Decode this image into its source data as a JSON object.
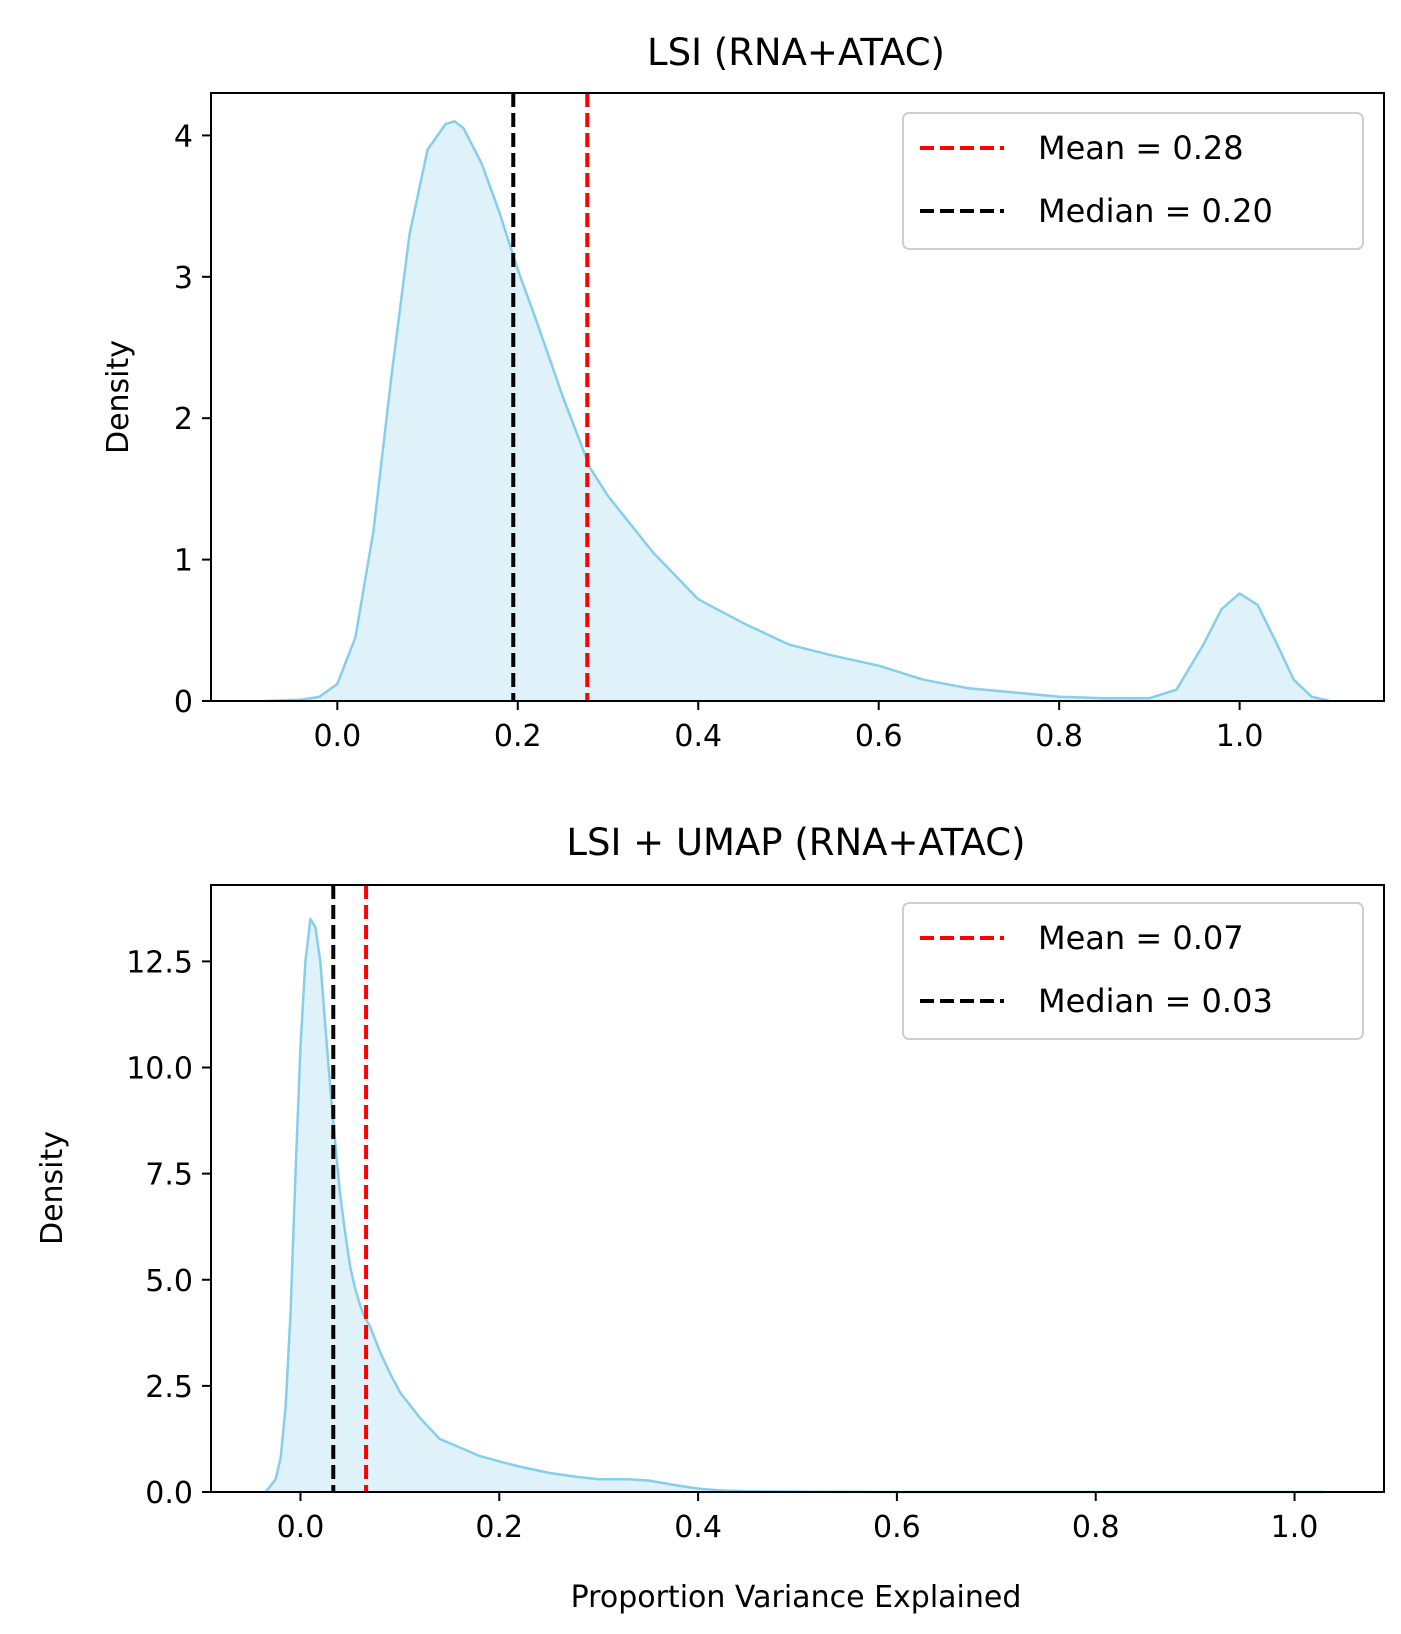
{
  "chart_data": [
    {
      "type": "area",
      "title": "LSI (RNA+ATAC)",
      "xlabel": "",
      "ylabel": "Density",
      "xlim": [
        -0.14,
        1.16
      ],
      "ylim": [
        0,
        4.3
      ],
      "x_ticks": [
        0.0,
        0.2,
        0.4,
        0.6,
        0.8,
        1.0
      ],
      "x_tick_labels": [
        "0.0",
        "0.2",
        "0.4",
        "0.6",
        "0.8",
        "1.0"
      ],
      "y_ticks": [
        0,
        1,
        2,
        3,
        4
      ],
      "y_tick_labels": [
        "0",
        "1",
        "2",
        "3",
        "4"
      ],
      "grid": false,
      "legend_position": "top-right",
      "series": [
        {
          "kind": "density",
          "color": "#87CEEB",
          "fill": "#DFF1F9",
          "x": [
            -0.08,
            -0.04,
            -0.02,
            0.0,
            0.02,
            0.04,
            0.06,
            0.08,
            0.1,
            0.12,
            0.13,
            0.14,
            0.16,
            0.18,
            0.2,
            0.22,
            0.25,
            0.28,
            0.3,
            0.35,
            0.4,
            0.45,
            0.5,
            0.55,
            0.6,
            0.65,
            0.7,
            0.75,
            0.8,
            0.85,
            0.9,
            0.93,
            0.96,
            0.98,
            1.0,
            1.02,
            1.04,
            1.06,
            1.08,
            1.1
          ],
          "y": [
            0.0,
            0.01,
            0.03,
            0.12,
            0.45,
            1.2,
            2.3,
            3.3,
            3.9,
            4.08,
            4.1,
            4.05,
            3.8,
            3.45,
            3.05,
            2.7,
            2.15,
            1.65,
            1.45,
            1.05,
            0.72,
            0.55,
            0.4,
            0.32,
            0.25,
            0.15,
            0.09,
            0.06,
            0.03,
            0.02,
            0.02,
            0.08,
            0.4,
            0.65,
            0.76,
            0.68,
            0.42,
            0.15,
            0.03,
            0.0
          ]
        },
        {
          "kind": "vline",
          "name": "Mean = 0.28",
          "x": 0.277,
          "color": "#FF0000",
          "style": "dashed"
        },
        {
          "kind": "vline",
          "name": "Median = 0.20",
          "x": 0.195,
          "color": "#000000",
          "style": "dashed"
        }
      ]
    },
    {
      "type": "area",
      "title": "LSI + UMAP (RNA+ATAC)",
      "xlabel": "Proportion Variance Explained",
      "ylabel": "Density",
      "xlim": [
        -0.09,
        1.09
      ],
      "ylim": [
        0,
        14.3
      ],
      "x_ticks": [
        0.0,
        0.2,
        0.4,
        0.6,
        0.8,
        1.0
      ],
      "x_tick_labels": [
        "0.0",
        "0.2",
        "0.4",
        "0.6",
        "0.8",
        "1.0"
      ],
      "y_ticks": [
        0.0,
        2.5,
        5.0,
        7.5,
        10.0,
        12.5
      ],
      "y_tick_labels": [
        "0.0",
        "2.5",
        "5.0",
        "7.5",
        "10.0",
        "12.5"
      ],
      "grid": false,
      "legend_position": "top-right",
      "series": [
        {
          "kind": "density",
          "color": "#87CEEB",
          "fill": "#DFF1F9",
          "x": [
            -0.035,
            -0.025,
            -0.02,
            -0.015,
            -0.01,
            -0.005,
            0.0,
            0.005,
            0.01,
            0.015,
            0.02,
            0.025,
            0.03,
            0.035,
            0.04,
            0.045,
            0.05,
            0.055,
            0.06,
            0.065,
            0.07,
            0.08,
            0.09,
            0.1,
            0.12,
            0.14,
            0.16,
            0.18,
            0.2,
            0.22,
            0.25,
            0.28,
            0.3,
            0.33,
            0.35,
            0.38,
            0.4,
            0.42,
            0.45,
            0.5,
            0.6,
            0.8,
            1.0,
            1.03
          ],
          "y": [
            0.0,
            0.3,
            0.8,
            2.0,
            4.2,
            7.5,
            10.5,
            12.5,
            13.5,
            13.3,
            12.5,
            11.0,
            9.5,
            8.2,
            7.0,
            6.1,
            5.3,
            4.8,
            4.4,
            4.1,
            3.9,
            3.3,
            2.8,
            2.35,
            1.75,
            1.25,
            1.05,
            0.85,
            0.72,
            0.6,
            0.45,
            0.35,
            0.3,
            0.3,
            0.27,
            0.15,
            0.08,
            0.04,
            0.02,
            0.01,
            0.0,
            0.0,
            0.0,
            0.0
          ]
        },
        {
          "kind": "vline",
          "name": "Mean = 0.07",
          "x": 0.066,
          "color": "#FF0000",
          "style": "dashed"
        },
        {
          "kind": "vline",
          "name": "Median = 0.03",
          "x": 0.033,
          "color": "#000000",
          "style": "dashed"
        }
      ]
    }
  ]
}
